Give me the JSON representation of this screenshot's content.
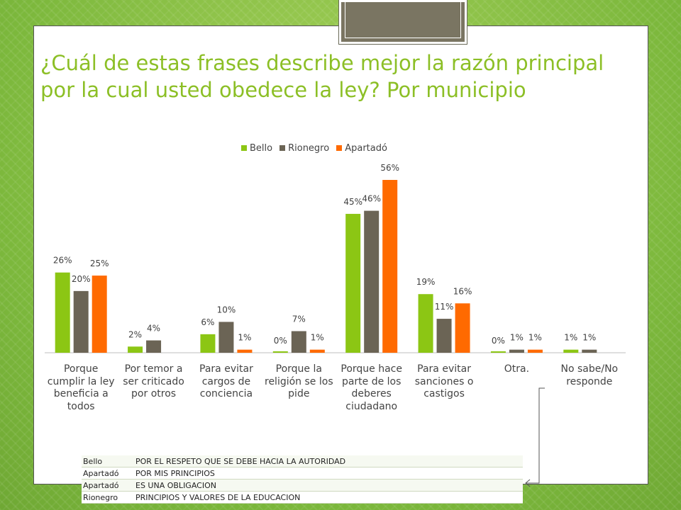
{
  "slide": {
    "title": "¿Cuál de estas frases describe mejor la razón principal por la cual usted obedece la ley?  Por municipio"
  },
  "colors": {
    "Bello": "#8cc614",
    "Rionegro": "#6b6455",
    "Apartadó": "#ff6a00",
    "title": "#8cbf26"
  },
  "chart_data": {
    "type": "bar",
    "title": "",
    "xlabel": "",
    "ylabel": "",
    "ylim": [
      0,
      60
    ],
    "legend_position": "top",
    "grid": false,
    "categories": [
      "Porque cumplir la ley beneficia a todos",
      "Por temor a ser criticado por otros",
      "Para evitar cargos de conciencia",
      "Porque la religión se los pide",
      "Porque hace parte de los deberes ciudadano",
      "Para evitar sanciones o castigos",
      "Otra.",
      "No sabe/No responde"
    ],
    "series": [
      {
        "name": "Bello",
        "values": [
          26,
          2,
          6,
          0,
          45,
          19,
          0,
          1
        ],
        "labels": [
          "26%",
          "2%",
          "6%",
          "0%",
          "45%",
          "19%",
          "0%",
          "1%"
        ]
      },
      {
        "name": "Rionegro",
        "values": [
          20,
          4,
          10,
          7,
          46,
          11,
          1,
          1
        ],
        "labels": [
          "20%",
          "4%",
          "10%",
          "7%",
          "46%",
          "11%",
          "1%",
          "1%"
        ]
      },
      {
        "name": "Apartadó",
        "values": [
          25,
          null,
          1,
          1,
          56,
          16,
          1,
          null
        ],
        "labels": [
          "25%",
          "",
          "1%",
          "1%",
          "56%",
          "16%",
          "1%",
          ""
        ]
      }
    ]
  },
  "notes_table": {
    "rows": [
      {
        "municipio": "Bello",
        "respuesta": "POR EL RESPETO QUE SE DEBE HACIA LA AUTORIDAD"
      },
      {
        "municipio": "Apartadó",
        "respuesta": "POR MIS PRINCIPIOS"
      },
      {
        "municipio": "Apartadó",
        "respuesta": "ES UNA OBLIGACION"
      },
      {
        "municipio": "Rionegro",
        "respuesta": "PRINCIPIOS Y VALORES DE LA EDUCACION"
      }
    ]
  }
}
